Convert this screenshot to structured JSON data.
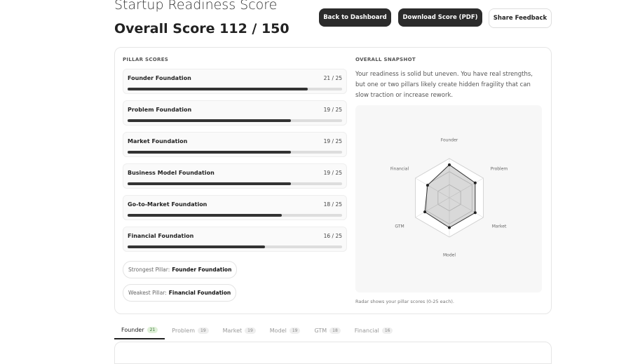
{
  "header": {
    "title": "Startup Readiness Score",
    "overall": "Overall Score 112 / 150",
    "buttons": [
      "Back to Dashboard",
      "Download Score (PDF)",
      "Share Feedback"
    ]
  },
  "pillar_section": {
    "heading": "PILLAR SCORES",
    "pillars": [
      {
        "name": "Founder Foundation",
        "score": 21,
        "max": 25,
        "score_label": "21 / 25"
      },
      {
        "name": "Problem Foundation",
        "score": 19,
        "max": 25,
        "score_label": "19 / 25"
      },
      {
        "name": "Market Foundation",
        "score": 19,
        "max": 25,
        "score_label": "19 / 25"
      },
      {
        "name": "Business Model Foundation",
        "score": 19,
        "max": 25,
        "score_label": "19 / 25"
      },
      {
        "name": "Go-to-Market Foundation",
        "score": 18,
        "max": 25,
        "score_label": "18 / 25"
      },
      {
        "name": "Financial Foundation",
        "score": 16,
        "max": 25,
        "score_label": "16 / 25"
      }
    ],
    "strongest": {
      "label": "Strongest Pillar:",
      "value": "Founder Foundation"
    },
    "weakest": {
      "label": "Weakest Pillar:",
      "value": "Financial Foundation"
    }
  },
  "snapshot": {
    "heading": "OVERALL SNAPSHOT",
    "text": "Your readiness is solid but uneven. You have real strengths, but one or two pillars likely create hidden fragility that can slow traction or increase rework.",
    "radar_labels": [
      "Founder",
      "Problem",
      "Market",
      "Model",
      "GTM",
      "Financial"
    ],
    "caption": "Radar shows your pillar scores (0-25 each)."
  },
  "tabs": [
    {
      "label": "Founder",
      "badge": 21
    },
    {
      "label": "Problem",
      "badge": 19
    },
    {
      "label": "Market",
      "badge": 19
    },
    {
      "label": "Model",
      "badge": 19
    },
    {
      "label": "GTM",
      "badge": 18
    },
    {
      "label": "Financial",
      "badge": 16
    }
  ]
}
